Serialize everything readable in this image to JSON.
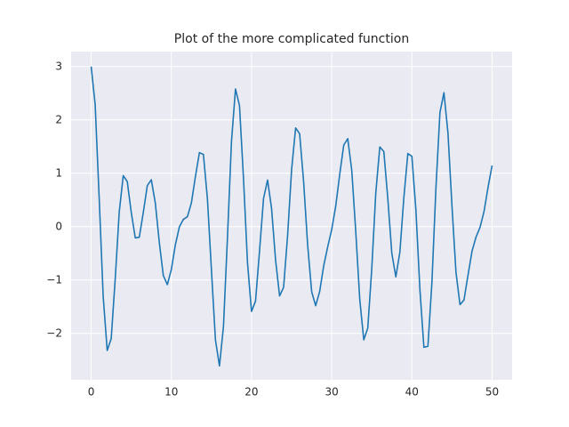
{
  "chart_data": {
    "type": "line",
    "title": "Plot of the more complicated function",
    "x": [
      0,
      0.5,
      1,
      1.5,
      2,
      2.5,
      3,
      3.5,
      4,
      4.5,
      5,
      5.5,
      6,
      6.5,
      7,
      7.5,
      8,
      8.5,
      9,
      9.5,
      10,
      10.5,
      11,
      11.5,
      12,
      12.5,
      13,
      13.5,
      14,
      14.5,
      15,
      15.5,
      16,
      16.5,
      17,
      17.5,
      18,
      18.5,
      19,
      19.5,
      20,
      20.5,
      21,
      21.5,
      22,
      22.5,
      23,
      23.5,
      24,
      24.5,
      25,
      25.5,
      26,
      26.5,
      27,
      27.5,
      28,
      28.5,
      29,
      29.5,
      30,
      30.5,
      31,
      31.5,
      32,
      32.5,
      33,
      33.5,
      34,
      34.5,
      35,
      35.5,
      36,
      36.5,
      37,
      37.5,
      38,
      38.5,
      39,
      39.5,
      40,
      40.5,
      41,
      41.5,
      42,
      42.5,
      43,
      43.5,
      44,
      44.5,
      45,
      45.5,
      46,
      46.5,
      47,
      47.5,
      48,
      48.5,
      49,
      49.5,
      50
    ],
    "series": [
      {
        "color": "#1f77b4",
        "values": [
          3,
          2.286,
          0.536,
          -1.308,
          -2.319,
          -2.097,
          -0.977,
          0.274,
          0.956,
          0.846,
          0.267,
          -0.21,
          -0.198,
          0.263,
          0.768,
          0.879,
          0.444,
          -0.298,
          -0.917,
          -1.085,
          -0.802,
          -0.341,
          -0.005,
          0.138,
          0.185,
          0.444,
          0.936,
          1.387,
          1.353,
          0.521,
          -0.811,
          -2.122,
          -2.609,
          -1.871,
          -0.203,
          1.596,
          2.58,
          2.268,
          0.901,
          -0.681,
          -1.588,
          -1.394,
          -0.452,
          0.53,
          0.873,
          0.341,
          -0.626,
          -1.297,
          -1.138,
          -0.166,
          1.07,
          1.85,
          1.742,
          0.838,
          -0.344,
          -1.218,
          -1.481,
          -1.215,
          -0.735,
          -0.378,
          -0.054,
          0.383,
          0.979,
          1.528,
          1.649,
          1.058,
          -0.091,
          -1.364,
          -2.12,
          -1.901,
          -0.782,
          0.636,
          1.494,
          1.407,
          0.522,
          -0.504,
          -0.941,
          -0.479,
          0.545,
          1.37,
          1.319,
          0.317,
          -1.173,
          -2.26,
          -2.24,
          -1.041,
          0.725,
          2.139,
          2.51,
          1.757,
          0.39,
          -0.855,
          -1.461,
          -1.373,
          -0.91,
          -0.46,
          -0.195,
          -0.012,
          0.285,
          0.738,
          1.144
        ]
      }
    ],
    "xlim": [
      -2.5,
      52.5
    ],
    "xticks": [
      0,
      10,
      20,
      30,
      40,
      50
    ],
    "ylim": [
      -2.87,
      3.28
    ],
    "yticks": [
      {
        "value": -2,
        "label": "−2"
      },
      {
        "value": -1,
        "label": "−1"
      },
      0,
      1,
      2,
      3
    ],
    "grid": true
  }
}
